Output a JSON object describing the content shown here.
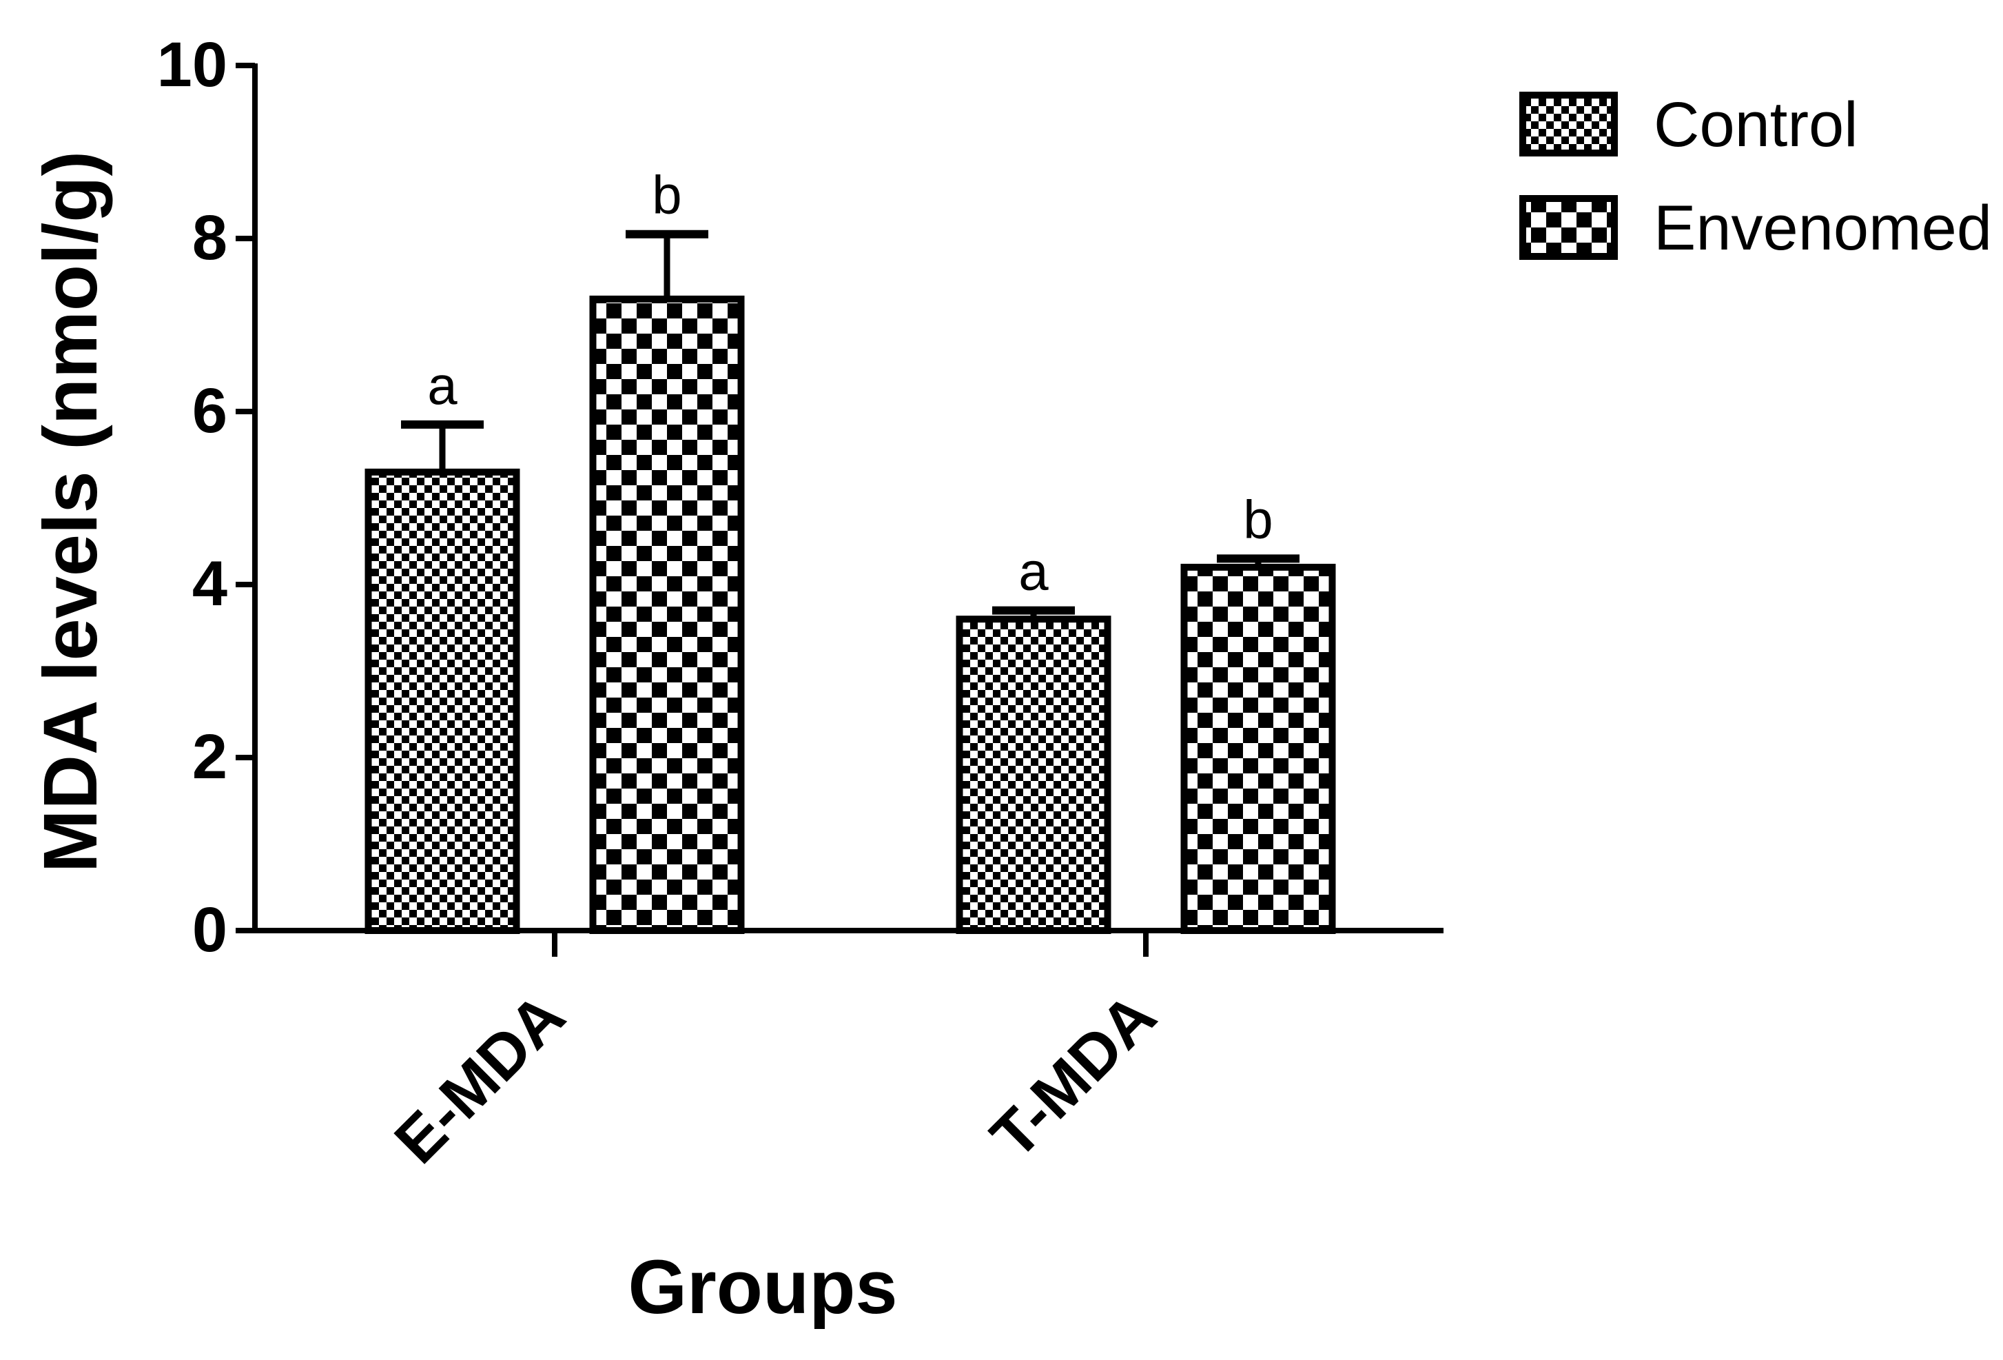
{
  "chart_data": {
    "type": "bar",
    "title": "",
    "xlabel": "Groups",
    "ylabel": "MDA levels (nmol/g)",
    "ylim": [
      0,
      10
    ],
    "yticks": [
      "0",
      "2",
      "4",
      "6",
      "8",
      "10"
    ],
    "grid": false,
    "legend_position": "top-right",
    "categories": [
      "E-MDA",
      "T-MDA"
    ],
    "series": [
      {
        "name": "Control",
        "pattern": "fine-checker",
        "values": [
          5.3,
          3.6
        ],
        "errors": [
          0.55,
          0.1
        ],
        "annotations": [
          "a",
          "a"
        ]
      },
      {
        "name": "Envenomed",
        "pattern": "coarse-checker",
        "values": [
          7.3,
          4.2
        ],
        "errors": [
          0.75,
          0.1
        ],
        "annotations": [
          "b",
          "b"
        ]
      }
    ],
    "colors": {
      "ink": "#000000",
      "background": "#ffffff"
    }
  }
}
